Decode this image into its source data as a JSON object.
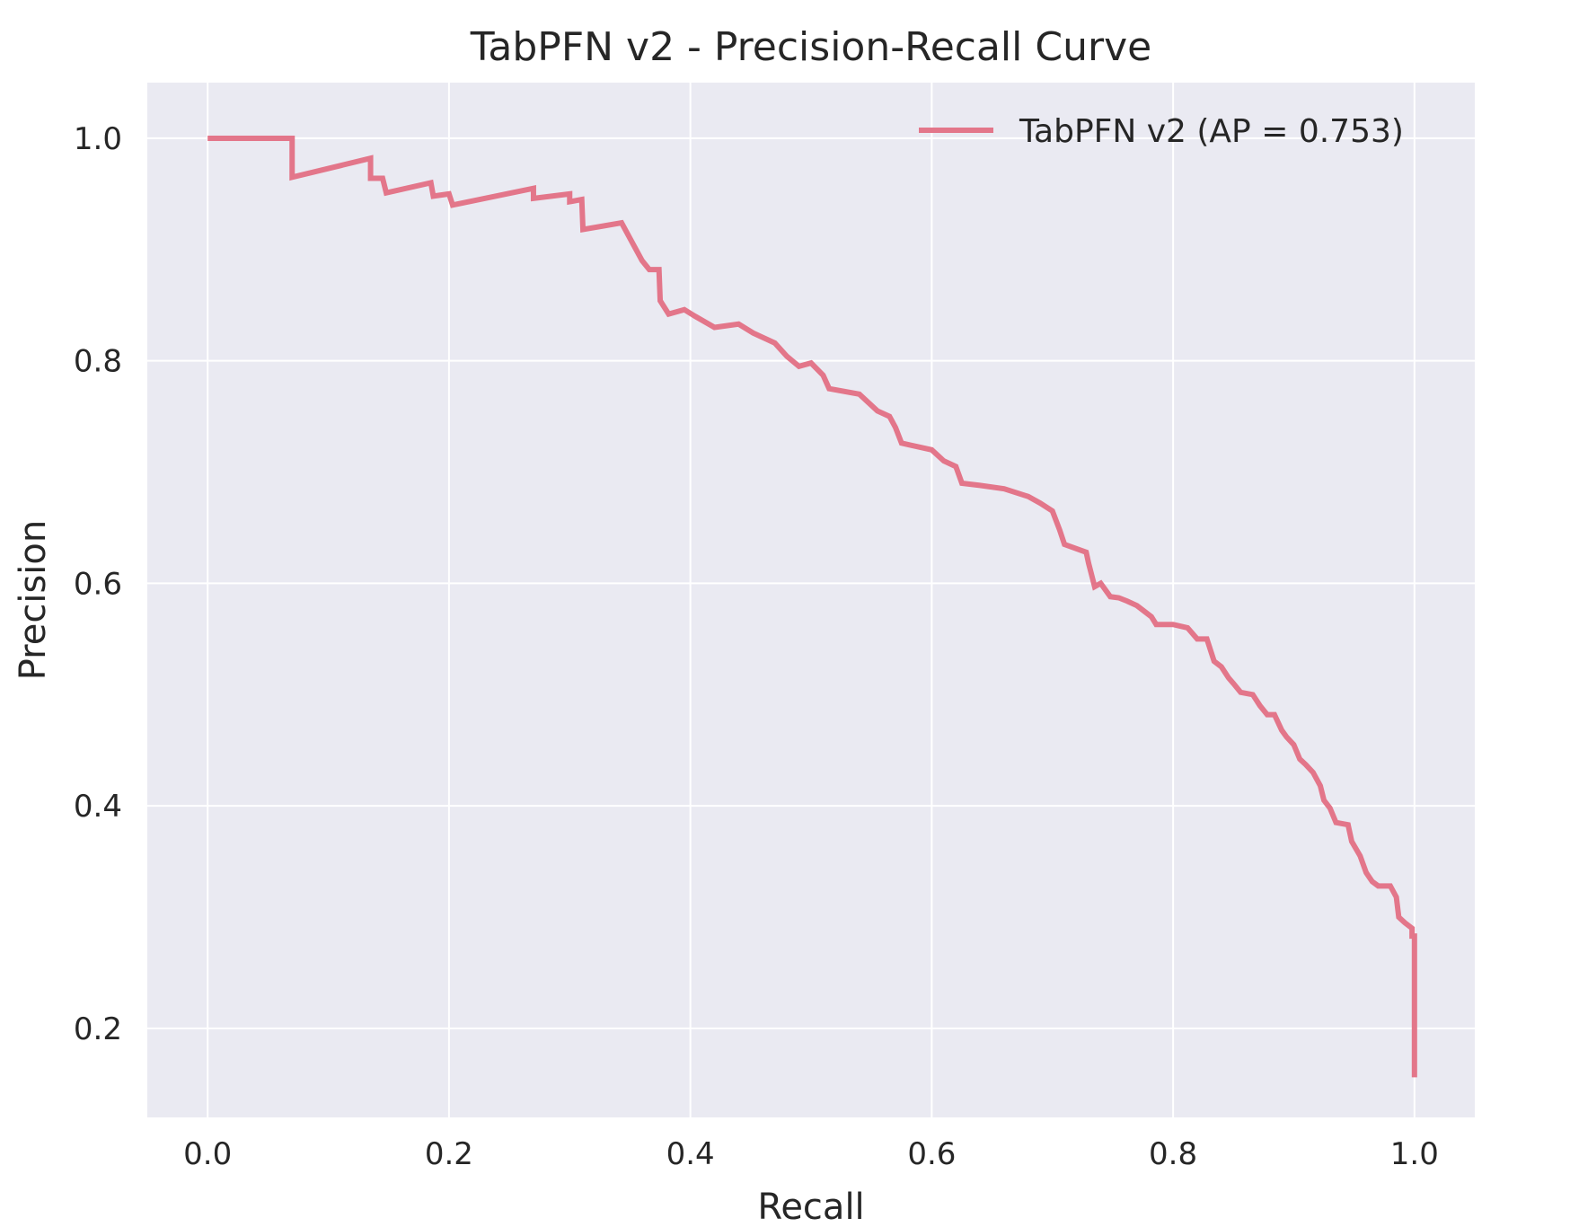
{
  "chart_data": {
    "type": "line",
    "title": "TabPFN v2 - Precision-Recall Curve",
    "xlabel": "Recall",
    "ylabel": "Precision",
    "xlim": [
      -0.05,
      1.05
    ],
    "ylim": [
      0.12,
      1.05
    ],
    "x_ticks": [
      0.0,
      0.2,
      0.4,
      0.6,
      0.8,
      1.0
    ],
    "x_tick_labels": [
      "0.0",
      "0.2",
      "0.4",
      "0.6",
      "0.8",
      "1.0"
    ],
    "y_ticks": [
      0.2,
      0.4,
      0.6,
      0.8,
      1.0
    ],
    "y_tick_labels": [
      "0.2",
      "0.4",
      "0.6",
      "0.8",
      "1.0"
    ],
    "grid": true,
    "legend_position": "top-right",
    "colors": {
      "plot_background": "#eaeaf2",
      "grid": "#ffffff",
      "series": "#e3768a",
      "text": "#262626"
    },
    "series": [
      {
        "name": "TabPFN v2 (AP = 0.753)",
        "step": true,
        "points": [
          [
            0.0,
            1.0
          ],
          [
            0.07,
            1.0
          ],
          [
            0.07,
            0.965
          ],
          [
            0.135,
            0.982
          ],
          [
            0.135,
            0.964
          ],
          [
            0.145,
            0.964
          ],
          [
            0.148,
            0.951
          ],
          [
            0.185,
            0.96
          ],
          [
            0.187,
            0.948
          ],
          [
            0.2,
            0.95
          ],
          [
            0.203,
            0.94
          ],
          [
            0.27,
            0.955
          ],
          [
            0.27,
            0.946
          ],
          [
            0.3,
            0.95
          ],
          [
            0.3,
            0.943
          ],
          [
            0.31,
            0.945
          ],
          [
            0.311,
            0.918
          ],
          [
            0.343,
            0.924
          ],
          [
            0.35,
            0.91
          ],
          [
            0.355,
            0.9
          ],
          [
            0.36,
            0.89
          ],
          [
            0.366,
            0.882
          ],
          [
            0.374,
            0.882
          ],
          [
            0.375,
            0.854
          ],
          [
            0.382,
            0.842
          ],
          [
            0.395,
            0.846
          ],
          [
            0.404,
            0.84
          ],
          [
            0.42,
            0.83
          ],
          [
            0.44,
            0.833
          ],
          [
            0.452,
            0.825
          ],
          [
            0.47,
            0.816
          ],
          [
            0.48,
            0.804
          ],
          [
            0.49,
            0.795
          ],
          [
            0.5,
            0.798
          ],
          [
            0.51,
            0.787
          ],
          [
            0.515,
            0.775
          ],
          [
            0.54,
            0.77
          ],
          [
            0.555,
            0.755
          ],
          [
            0.565,
            0.75
          ],
          [
            0.57,
            0.74
          ],
          [
            0.575,
            0.726
          ],
          [
            0.6,
            0.72
          ],
          [
            0.61,
            0.71
          ],
          [
            0.62,
            0.705
          ],
          [
            0.625,
            0.69
          ],
          [
            0.64,
            0.688
          ],
          [
            0.66,
            0.685
          ],
          [
            0.68,
            0.678
          ],
          [
            0.69,
            0.672
          ],
          [
            0.7,
            0.665
          ],
          [
            0.706,
            0.648
          ],
          [
            0.71,
            0.635
          ],
          [
            0.728,
            0.628
          ],
          [
            0.73,
            0.618
          ],
          [
            0.735,
            0.597
          ],
          [
            0.74,
            0.6
          ],
          [
            0.748,
            0.588
          ],
          [
            0.755,
            0.587
          ],
          [
            0.762,
            0.584
          ],
          [
            0.77,
            0.58
          ],
          [
            0.782,
            0.57
          ],
          [
            0.786,
            0.563
          ],
          [
            0.8,
            0.563
          ],
          [
            0.812,
            0.56
          ],
          [
            0.82,
            0.55
          ],
          [
            0.828,
            0.55
          ],
          [
            0.834,
            0.53
          ],
          [
            0.84,
            0.525
          ],
          [
            0.846,
            0.515
          ],
          [
            0.85,
            0.51
          ],
          [
            0.856,
            0.502
          ],
          [
            0.866,
            0.5
          ],
          [
            0.872,
            0.49
          ],
          [
            0.878,
            0.482
          ],
          [
            0.884,
            0.482
          ],
          [
            0.89,
            0.468
          ],
          [
            0.894,
            0.462
          ],
          [
            0.9,
            0.455
          ],
          [
            0.905,
            0.442
          ],
          [
            0.91,
            0.437
          ],
          [
            0.916,
            0.43
          ],
          [
            0.922,
            0.418
          ],
          [
            0.925,
            0.405
          ],
          [
            0.93,
            0.398
          ],
          [
            0.935,
            0.385
          ],
          [
            0.945,
            0.383
          ],
          [
            0.948,
            0.368
          ],
          [
            0.955,
            0.355
          ],
          [
            0.96,
            0.34
          ],
          [
            0.965,
            0.332
          ],
          [
            0.97,
            0.328
          ],
          [
            0.98,
            0.328
          ],
          [
            0.985,
            0.318
          ],
          [
            0.987,
            0.3
          ],
          [
            0.992,
            0.295
          ],
          [
            0.998,
            0.29
          ],
          [
            0.998,
            0.283
          ],
          [
            1.0,
            0.283
          ],
          [
            1.0,
            0.156
          ]
        ]
      }
    ]
  }
}
